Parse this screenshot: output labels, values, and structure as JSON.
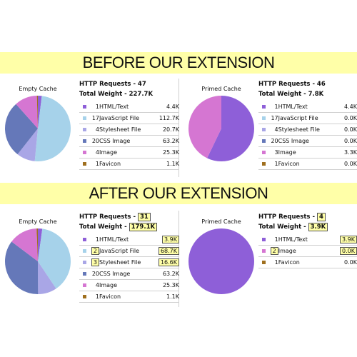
{
  "before": {
    "heading": "BEFORE OUR EXTENSION",
    "empty": {
      "label": "Empty Cache",
      "requests_label": "HTTP Requests - 47",
      "weight_label": "Total Weight - 227.7K",
      "rows": [
        {
          "count": "1",
          "type": "HTML/Text",
          "size": "4.4K",
          "color": "#8e5fd8",
          "kb": 4.4
        },
        {
          "count": "17",
          "type": "JavaScript File",
          "size": "112.7K",
          "color": "#a6d2ea",
          "kb": 112.7
        },
        {
          "count": "4",
          "type": "Stylesheet File",
          "size": "20.7K",
          "color": "#a9a6e6",
          "kb": 20.7
        },
        {
          "count": "20",
          "type": "CSS Image",
          "size": "63.2K",
          "color": "#6578b9",
          "kb": 63.2
        },
        {
          "count": "4",
          "type": "Image",
          "size": "25.3K",
          "color": "#d576d2",
          "kb": 25.3
        },
        {
          "count": "1",
          "type": "Favicon",
          "size": "1.1K",
          "color": "#9f6f1e",
          "kb": 1.1
        }
      ]
    },
    "primed": {
      "label": "Primed Cache",
      "requests_label": "HTTP Requests - 46",
      "weight_label": "Total Weight - 7.8K",
      "rows": [
        {
          "count": "1",
          "type": "HTML/Text",
          "size": "4.4K",
          "color": "#8e5fd8",
          "kb": 4.4
        },
        {
          "count": "17",
          "type": "JavaScript File",
          "size": "0.0K",
          "color": "#a6d2ea",
          "kb": 0
        },
        {
          "count": "4",
          "type": "Stylesheet File",
          "size": "0.0K",
          "color": "#a9a6e6",
          "kb": 0
        },
        {
          "count": "20",
          "type": "CSS Image",
          "size": "0.0K",
          "color": "#6578b9",
          "kb": 0
        },
        {
          "count": "3",
          "type": "Image",
          "size": "3.3K",
          "color": "#d576d2",
          "kb": 3.3
        },
        {
          "count": "1",
          "type": "Favicon",
          "size": "0.0K",
          "color": "#9f6f1e",
          "kb": 0
        }
      ]
    }
  },
  "after": {
    "heading": "AFTER OUR EXTENSION",
    "empty": {
      "label": "Empty Cache",
      "requests_prefix": "HTTP Requests -",
      "requests_value": "31",
      "weight_prefix": "Total Weight -",
      "weight_value": "179.1K",
      "rows": [
        {
          "count": "1",
          "type": "HTML/Text",
          "size": "3.9K",
          "color": "#8e5fd8",
          "kb": 3.9,
          "count_hl": false,
          "size_hl": true
        },
        {
          "count": "2",
          "type": "JavaScript File",
          "size": "68.7K",
          "color": "#a6d2ea",
          "kb": 68.7,
          "count_hl": true,
          "size_hl": true
        },
        {
          "count": "3",
          "type": "Stylesheet File",
          "size": "16.6K",
          "color": "#a9a6e6",
          "kb": 16.6,
          "count_hl": true,
          "size_hl": true
        },
        {
          "count": "20",
          "type": "CSS Image",
          "size": "63.2K",
          "color": "#6578b9",
          "kb": 63.2,
          "count_hl": false,
          "size_hl": false
        },
        {
          "count": "4",
          "type": "Image",
          "size": "25.3K",
          "color": "#d576d2",
          "kb": 25.3,
          "count_hl": false,
          "size_hl": false
        },
        {
          "count": "1",
          "type": "Favicon",
          "size": "1.1K",
          "color": "#9f6f1e",
          "kb": 1.1,
          "count_hl": false,
          "size_hl": false
        }
      ]
    },
    "primed": {
      "label": "Primed Cache",
      "requests_prefix": "HTTP Requests -",
      "requests_value": "4",
      "weight_prefix": "Total Weight -",
      "weight_value": "3.9K",
      "rows": [
        {
          "count": "1",
          "type": "HTML/Text",
          "size": "3.9K",
          "color": "#8e5fd8",
          "kb": 3.9,
          "count_hl": false,
          "size_hl": true
        },
        {
          "count": "2",
          "type": "Image",
          "size": "0.0K",
          "color": "#d576d2",
          "kb": 0,
          "count_hl": true,
          "size_hl": true
        },
        {
          "count": "1",
          "type": "Favicon",
          "size": "0.0K",
          "color": "#9f6f1e",
          "kb": 0,
          "count_hl": false,
          "size_hl": false
        }
      ]
    }
  }
}
